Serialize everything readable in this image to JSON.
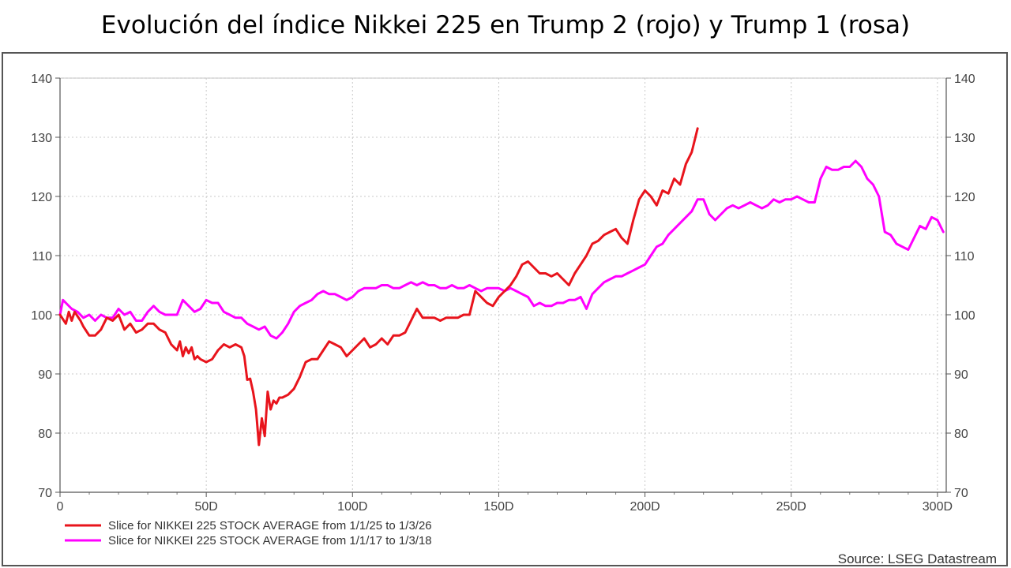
{
  "chart_data": {
    "type": "line",
    "title": "Evolución del índice Nikkei 225 en Trump 2 (rojo) y Trump 1 (rosa)",
    "xlim": [
      0,
      303
    ],
    "ylim": [
      70,
      140
    ],
    "x_ticks": [
      0,
      50,
      100,
      150,
      200,
      250,
      300
    ],
    "x_tick_labels": [
      "0",
      "50D",
      "100D",
      "150D",
      "200D",
      "250D",
      "300D"
    ],
    "y_ticks": [
      70,
      80,
      90,
      100,
      110,
      120,
      130,
      140
    ],
    "y_tick_labels": [
      "70",
      "80",
      "90",
      "100",
      "110",
      "120",
      "130",
      "140"
    ],
    "grid": true,
    "source": "Source: LSEG Datastream",
    "series": [
      {
        "name": "Slice for NIKKEI 225 STOCK AVERAGE from 1/1/25 to 1/3/26",
        "color": "#e8141c",
        "x": [
          0,
          2,
          3,
          4,
          5,
          7,
          8,
          10,
          12,
          14,
          16,
          18,
          20,
          22,
          24,
          26,
          28,
          30,
          32,
          34,
          36,
          38,
          40,
          41,
          42,
          43,
          44,
          45,
          46,
          47,
          48,
          50,
          52,
          54,
          56,
          58,
          60,
          62,
          63,
          64,
          65,
          66,
          67,
          68,
          69,
          70,
          71,
          72,
          73,
          74,
          75,
          76,
          78,
          80,
          82,
          84,
          86,
          88,
          90,
          92,
          94,
          96,
          98,
          100,
          102,
          104,
          106,
          108,
          110,
          112,
          114,
          116,
          118,
          120,
          122,
          124,
          126,
          128,
          130,
          132,
          134,
          136,
          138,
          140,
          142,
          144,
          145,
          146,
          148,
          150,
          152,
          154,
          156,
          158,
          160,
          162,
          164,
          166,
          168,
          170,
          172,
          174,
          176,
          178,
          180,
          182,
          184,
          186,
          188,
          190,
          192,
          194,
          196,
          198,
          200,
          202,
          204,
          206,
          208,
          210,
          212,
          214,
          216,
          218
        ],
        "values": [
          100,
          98.5,
          100.5,
          99,
          100.5,
          99,
          98,
          96.5,
          96.5,
          97.5,
          99.5,
          99,
          100,
          97.5,
          98.5,
          97,
          97.5,
          98.5,
          98.5,
          97.5,
          97,
          95,
          94,
          95.5,
          93,
          94.5,
          93.5,
          94.5,
          92.5,
          93,
          92.5,
          92,
          92.5,
          94,
          95,
          94.5,
          95,
          94.5,
          93,
          89,
          89.2,
          87,
          84,
          78,
          82.5,
          79.5,
          87,
          84,
          85.5,
          85,
          86,
          86,
          86.5,
          87.5,
          89.5,
          92,
          92.5,
          92.5,
          94,
          95.5,
          95,
          94.5,
          93,
          94,
          95,
          96,
          94.5,
          95,
          96,
          95,
          96.5,
          96.5,
          97,
          99,
          101,
          99.5,
          99.5,
          99.5,
          99,
          99.5,
          99.5,
          99.5,
          100,
          100,
          104,
          103,
          102.5,
          102,
          101.5,
          103,
          104,
          105,
          106.5,
          108.5,
          109,
          108,
          107,
          107,
          106.5,
          107,
          106,
          105,
          107,
          108.5,
          110,
          112,
          112.5,
          113.5,
          114,
          114.5,
          113,
          112,
          116,
          119.5,
          121,
          120,
          118.5,
          121,
          120.5,
          123,
          122,
          125.5,
          127.5,
          131.5
        ]
      },
      {
        "name": "Slice for NIKKEI 225 STOCK AVERAGE from 1/1/17 to 1/3/18",
        "color": "#ff00ff",
        "x": [
          0,
          1,
          2,
          4,
          6,
          8,
          10,
          12,
          14,
          16,
          18,
          20,
          22,
          24,
          26,
          28,
          30,
          32,
          34,
          36,
          38,
          40,
          42,
          44,
          46,
          48,
          50,
          52,
          54,
          56,
          58,
          60,
          62,
          64,
          66,
          68,
          70,
          72,
          74,
          76,
          78,
          80,
          82,
          84,
          86,
          88,
          90,
          92,
          94,
          96,
          98,
          100,
          102,
          104,
          106,
          108,
          110,
          112,
          114,
          116,
          118,
          120,
          122,
          124,
          126,
          128,
          130,
          132,
          134,
          136,
          138,
          140,
          142,
          144,
          146,
          148,
          150,
          152,
          154,
          156,
          158,
          160,
          162,
          164,
          166,
          168,
          170,
          172,
          174,
          176,
          178,
          180,
          182,
          184,
          186,
          188,
          190,
          192,
          194,
          196,
          198,
          200,
          202,
          204,
          206,
          208,
          210,
          212,
          214,
          216,
          218,
          220,
          222,
          224,
          226,
          228,
          230,
          232,
          234,
          236,
          238,
          240,
          242,
          244,
          246,
          248,
          250,
          252,
          254,
          256,
          258,
          260,
          262,
          264,
          266,
          268,
          270,
          272,
          274,
          276,
          278,
          280,
          282,
          284,
          286,
          288,
          290,
          292,
          294,
          296,
          298,
          300,
          302
        ],
        "values": [
          100,
          102.5,
          102,
          101,
          100.5,
          99.5,
          100,
          99,
          100,
          99.5,
          99.5,
          101,
          100,
          100.5,
          99,
          99,
          100.5,
          101.5,
          100.5,
          100,
          100,
          100,
          102.5,
          101.5,
          100.5,
          101,
          102.5,
          102,
          102,
          100.5,
          100,
          99.5,
          99.5,
          98.5,
          98,
          97.5,
          98,
          96.5,
          96,
          97,
          98.5,
          100.5,
          101.5,
          102,
          102.5,
          103.5,
          104,
          103.5,
          103.5,
          103,
          102.5,
          103,
          104,
          104.5,
          104.5,
          104.5,
          105,
          105,
          104.5,
          104.5,
          105,
          105.5,
          105,
          105.5,
          105,
          105,
          104.5,
          104.5,
          105,
          104.5,
          104.5,
          105,
          104.5,
          104,
          104.5,
          104.5,
          104.5,
          104,
          104.5,
          104,
          103.5,
          103,
          101.5,
          102,
          101.5,
          101.5,
          102,
          102,
          102.5,
          102.5,
          103,
          101,
          103.5,
          104.5,
          105.5,
          106,
          106.5,
          106.5,
          107,
          107.5,
          108,
          108.5,
          110,
          111.5,
          112,
          113.5,
          114.5,
          115.5,
          116.5,
          117.5,
          119.5,
          119.5,
          117,
          116,
          117,
          118,
          118.5,
          118,
          118.5,
          119,
          118.5,
          118,
          118.5,
          119.5,
          119,
          119.5,
          119.5,
          120,
          119.5,
          119,
          119,
          123,
          125,
          124.5,
          124.5,
          125,
          125,
          126,
          125,
          123,
          122,
          120,
          114,
          113.5,
          112,
          111.5,
          111,
          113,
          115,
          114.5,
          116.5,
          116,
          114
        ]
      }
    ]
  }
}
